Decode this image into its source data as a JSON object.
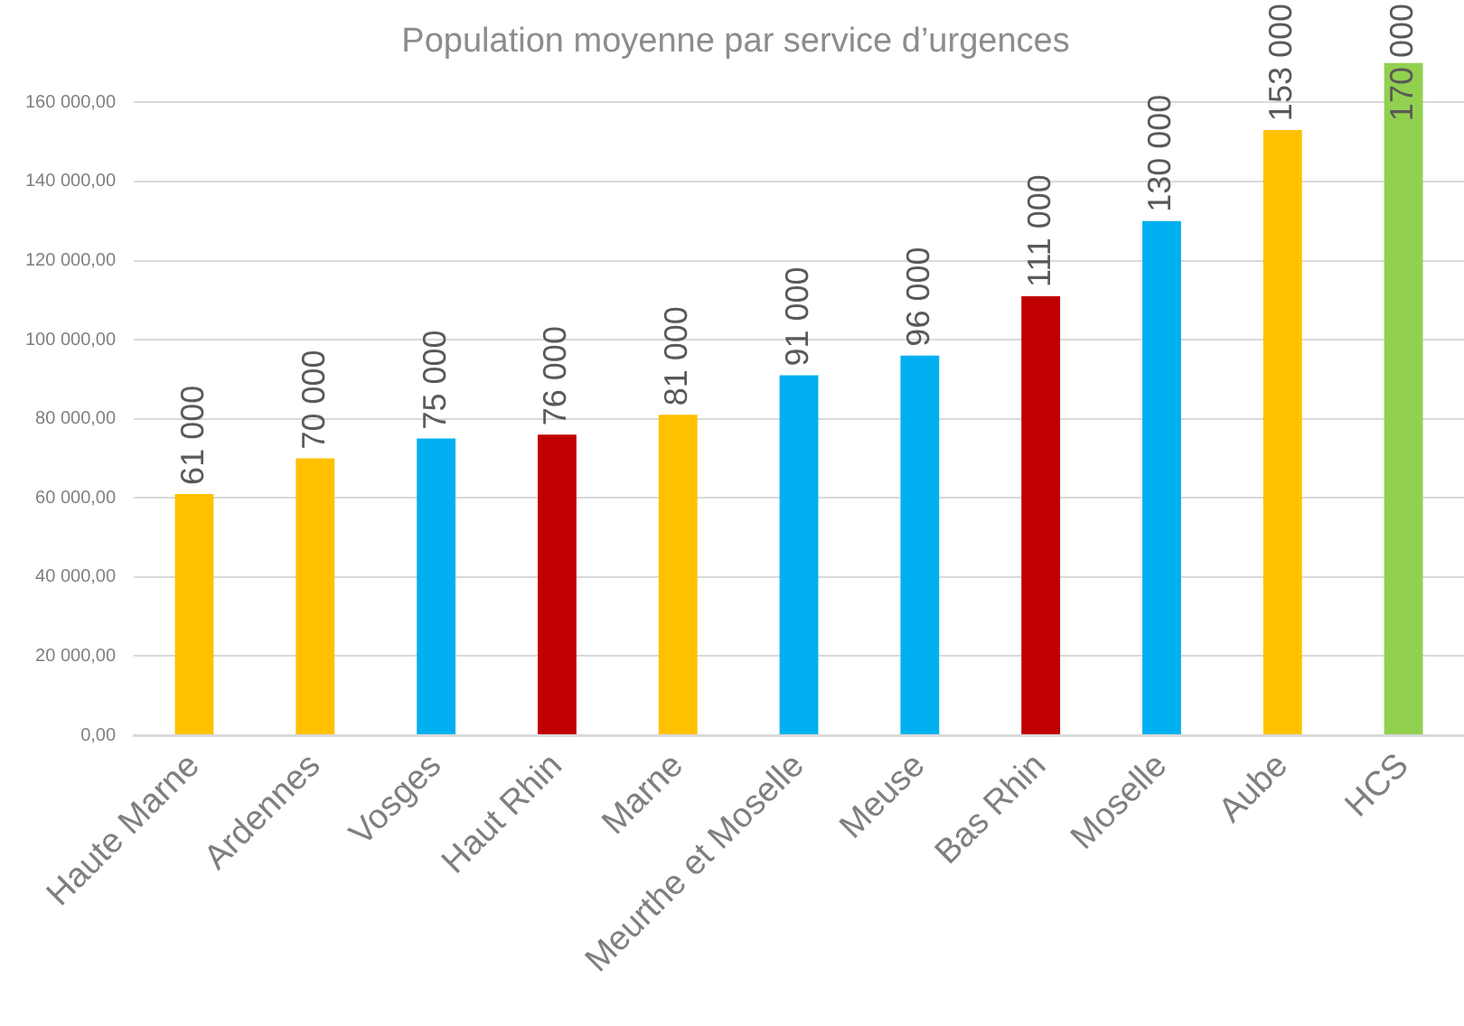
{
  "chart_data": {
    "type": "bar",
    "title": "Population moyenne par service d’urgences",
    "categories": [
      "Haute Marne",
      "Ardennes",
      "Vosges",
      "Haut Rhin",
      "Marne",
      "Meurthe et Moselle",
      "Meuse",
      "Bas Rhin",
      "Moselle",
      "Aube",
      "HCS"
    ],
    "values": [
      61000,
      70000,
      75000,
      76000,
      81000,
      91000,
      96000,
      111000,
      130000,
      153000,
      170000
    ],
    "colors": [
      "#ffc000",
      "#ffc000",
      "#00b0f0",
      "#c00000",
      "#ffc000",
      "#00b0f0",
      "#00b0f0",
      "#c00000",
      "#00b0f0",
      "#ffc000",
      "#92d050"
    ],
    "value_labels": [
      "61 000",
      "70 000",
      "75 000",
      "76 000",
      "81 000",
      "91 000",
      "96 000",
      "111 000",
      "130 000",
      "153 000",
      "170 000"
    ],
    "ylim": [
      0,
      170000
    ],
    "yticks": [
      {
        "value": 0,
        "label": "0,00"
      },
      {
        "value": 20000,
        "label": "20 000,00"
      },
      {
        "value": 40000,
        "label": "40 000,00"
      },
      {
        "value": 60000,
        "label": "60 000,00"
      },
      {
        "value": 80000,
        "label": "80 000,00"
      },
      {
        "value": 100000,
        "label": "100 000,00"
      },
      {
        "value": 120000,
        "label": "120 000,00"
      },
      {
        "value": 140000,
        "label": "140 000,00"
      },
      {
        "value": 160000,
        "label": "160 000,00"
      }
    ],
    "grid": "y"
  }
}
